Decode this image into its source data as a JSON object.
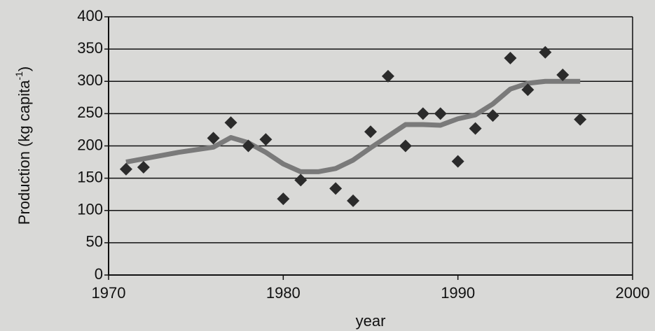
{
  "chart_data": {
    "type": "scatter",
    "x": [
      1971,
      1972,
      1976,
      1977,
      1978,
      1979,
      1980,
      1981,
      1983,
      1984,
      1985,
      1986,
      1987,
      1988,
      1989,
      1990,
      1991,
      1992,
      1993,
      1994,
      1995,
      1996,
      1997
    ],
    "values": [
      164,
      167,
      212,
      236,
      200,
      210,
      118,
      147,
      134,
      115,
      222,
      308,
      200,
      250,
      250,
      176,
      227,
      247,
      336,
      287,
      345,
      310,
      241
    ],
    "color": "#2b2b2b",
    "trend": {
      "x": [
        1971,
        1972,
        1974,
        1976,
        1977,
        1978,
        1979,
        1980,
        1981,
        1982,
        1983,
        1984,
        1985,
        1986,
        1987,
        1988,
        1989,
        1990,
        1991,
        1992,
        1993,
        1994,
        1995,
        1996,
        1997
      ],
      "values": [
        175,
        180,
        190,
        198,
        213,
        205,
        190,
        172,
        160,
        160,
        165,
        178,
        197,
        215,
        233,
        233,
        232,
        242,
        248,
        265,
        288,
        297,
        300,
        300,
        300
      ],
      "color": "#7a7a7a"
    },
    "xlim": [
      1970,
      2000
    ],
    "xticks": [
      1970,
      1980,
      1990,
      2000
    ],
    "ylim": [
      0,
      400
    ],
    "yticks": [
      0,
      50,
      100,
      150,
      200,
      250,
      300,
      350,
      400
    ],
    "grid": true,
    "xlabel": "year",
    "ylabel": "Production (kg capita",
    "ylabel_sup": "-1",
    "ylabel_end": ")"
  }
}
